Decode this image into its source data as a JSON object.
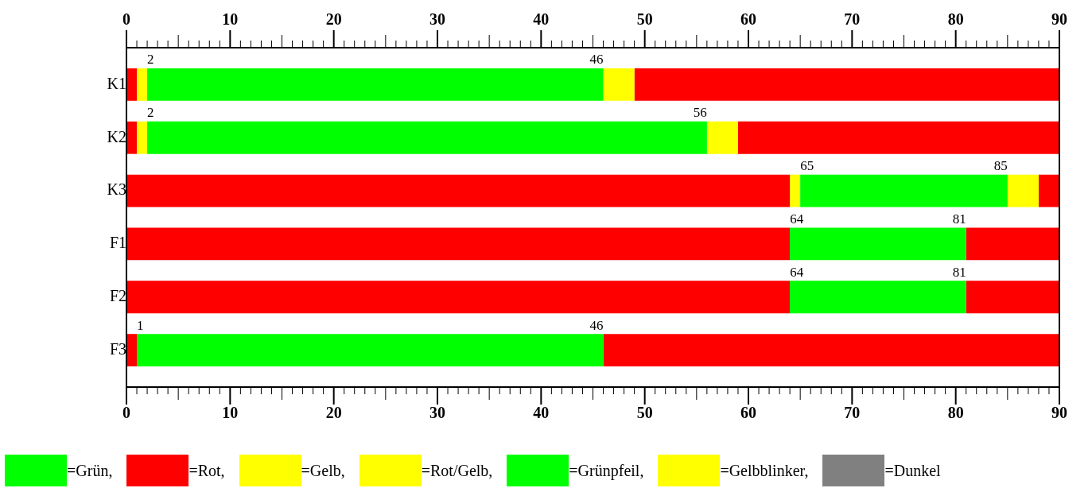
{
  "chart_data": {
    "type": "bar",
    "orientation": "horizontal",
    "categories": [
      "K1",
      "K2",
      "K3",
      "F1",
      "F2",
      "F3"
    ],
    "series": [
      {
        "name": "=Grün,",
        "color": "#00ff00",
        "base": [
          2,
          2,
          65,
          64,
          64,
          1
        ],
        "values": [
          44,
          54,
          20,
          17,
          17,
          45
        ]
      },
      {
        "name": "=Rot,",
        "color": "#ff0000",
        "base": [
          0,
          0,
          0,
          0,
          0,
          0
        ],
        "values": [
          1,
          1,
          64,
          64,
          64,
          1
        ]
      },
      {
        "name": "=Gelb,",
        "color": "#ffff00",
        "base": [
          46,
          56,
          85,
          null,
          null,
          null
        ],
        "values": [
          3,
          3,
          3,
          null,
          null,
          null
        ]
      },
      {
        "name": "=Rot/Gelb,",
        "color": "#ffff00",
        "base": [
          1,
          1,
          64,
          null,
          null,
          null
        ],
        "values": [
          1,
          1,
          1,
          null,
          null,
          null
        ]
      },
      {
        "name": "=Grünpfeil,",
        "color": "#00ff00",
        "values": [
          null,
          null,
          null,
          null,
          null,
          null
        ]
      },
      {
        "name": "=Gelbblinker,",
        "color": "#ffff00",
        "values": [
          null,
          null,
          null,
          null,
          null,
          null
        ]
      },
      {
        "name": "=Dunkel",
        "color": "#808080",
        "values": [
          null,
          null,
          null,
          null,
          null,
          null
        ]
      },
      {
        "color": "#ff0000",
        "base": [
          49,
          59,
          88,
          81,
          81,
          46
        ],
        "values": [
          41,
          31,
          2,
          9,
          9,
          44
        ]
      }
    ],
    "xlim": [
      0,
      90
    ],
    "x2lim": [
      0,
      90
    ],
    "xticks": [
      0,
      {
        "value": 1,
        "label": null
      },
      {
        "value": 2,
        "label": null
      },
      {
        "value": 3,
        "label": null
      },
      {
        "value": 4,
        "label": null
      },
      {
        "value": 5,
        "label": null
      },
      {
        "value": 6,
        "label": null
      },
      {
        "value": 7,
        "label": null
      },
      {
        "value": 8,
        "label": null
      },
      {
        "value": 9,
        "label": null
      },
      10,
      {
        "value": 11,
        "label": null
      },
      {
        "value": 12,
        "label": null
      },
      {
        "value": 13,
        "label": null
      },
      {
        "value": 14,
        "label": null
      },
      {
        "value": 15,
        "label": null
      },
      {
        "value": 16,
        "label": null
      },
      {
        "value": 17,
        "label": null
      },
      {
        "value": 18,
        "label": null
      },
      {
        "value": 19,
        "label": null
      },
      20,
      {
        "value": 21,
        "label": null
      },
      {
        "value": 22,
        "label": null
      },
      {
        "value": 23,
        "label": null
      },
      {
        "value": 24,
        "label": null
      },
      {
        "value": 25,
        "label": null
      },
      {
        "value": 26,
        "label": null
      },
      {
        "value": 27,
        "label": null
      },
      {
        "value": 28,
        "label": null
      },
      {
        "value": 29,
        "label": null
      },
      30,
      {
        "value": 31,
        "label": null
      },
      {
        "value": 32,
        "label": null
      },
      {
        "value": 33,
        "label": null
      },
      {
        "value": 34,
        "label": null
      },
      {
        "value": 35,
        "label": null
      },
      {
        "value": 36,
        "label": null
      },
      {
        "value": 37,
        "label": null
      },
      {
        "value": 38,
        "label": null
      },
      {
        "value": 39,
        "label": null
      },
      40,
      {
        "value": 41,
        "label": null
      },
      {
        "value": 42,
        "label": null
      },
      {
        "value": 43,
        "label": null
      },
      {
        "value": 44,
        "label": null
      },
      {
        "value": 45,
        "label": null
      },
      {
        "value": 46,
        "label": null
      },
      {
        "value": 47,
        "label": null
      },
      {
        "value": 48,
        "label": null
      },
      {
        "value": 49,
        "label": null
      },
      50,
      {
        "value": 51,
        "label": null
      },
      {
        "value": 52,
        "label": null
      },
      {
        "value": 53,
        "label": null
      },
      {
        "value": 54,
        "label": null
      },
      {
        "value": 55,
        "label": null
      },
      {
        "value": 56,
        "label": null
      },
      {
        "value": 57,
        "label": null
      },
      {
        "value": 58,
        "label": null
      },
      {
        "value": 59,
        "label": null
      },
      60,
      {
        "value": 61,
        "label": null
      },
      {
        "value": 62,
        "label": null
      },
      {
        "value": 63,
        "label": null
      },
      {
        "value": 64,
        "label": null
      },
      {
        "value": 65,
        "label": null
      },
      {
        "value": 66,
        "label": null
      },
      {
        "value": 67,
        "label": null
      },
      {
        "value": 68,
        "label": null
      },
      {
        "value": 69,
        "label": null
      },
      70,
      {
        "value": 71,
        "label": null
      },
      {
        "value": 72,
        "label": null
      },
      {
        "value": 73,
        "label": null
      },
      {
        "value": 74,
        "label": null
      },
      {
        "value": 75,
        "label": null
      },
      {
        "value": 76,
        "label": null
      },
      {
        "value": 77,
        "label": null
      },
      {
        "value": 78,
        "label": null
      },
      {
        "value": 79,
        "label": null
      },
      80,
      {
        "value": 81,
        "label": null
      },
      {
        "value": 82,
        "label": null
      },
      {
        "value": 83,
        "label": null
      },
      {
        "value": 84,
        "label": null
      },
      {
        "value": 85,
        "label": null
      },
      {
        "value": 86,
        "label": null
      },
      {
        "value": 87,
        "label": null
      },
      {
        "value": 88,
        "label": null
      },
      {
        "value": 89,
        "label": null
      },
      90
    ],
    "x2ticks": [
      0,
      {
        "value": 1,
        "label": null
      },
      {
        "value": 2,
        "label": null
      },
      {
        "value": 3,
        "label": null
      },
      {
        "value": 4,
        "label": null
      },
      {
        "value": 5,
        "label": null
      },
      {
        "value": 6,
        "label": null
      },
      {
        "value": 7,
        "label": null
      },
      {
        "value": 8,
        "label": null
      },
      {
        "value": 9,
        "label": null
      },
      10,
      {
        "value": 11,
        "label": null
      },
      {
        "value": 12,
        "label": null
      },
      {
        "value": 13,
        "label": null
      },
      {
        "value": 14,
        "label": null
      },
      {
        "value": 15,
        "label": null
      },
      {
        "value": 16,
        "label": null
      },
      {
        "value": 17,
        "label": null
      },
      {
        "value": 18,
        "label": null
      },
      {
        "value": 19,
        "label": null
      },
      20,
      {
        "value": 21,
        "label": null
      },
      {
        "value": 22,
        "label": null
      },
      {
        "value": 23,
        "label": null
      },
      {
        "value": 24,
        "label": null
      },
      {
        "value": 25,
        "label": null
      },
      {
        "value": 26,
        "label": null
      },
      {
        "value": 27,
        "label": null
      },
      {
        "value": 28,
        "label": null
      },
      {
        "value": 29,
        "label": null
      },
      30,
      {
        "value": 31,
        "label": null
      },
      {
        "value": 32,
        "label": null
      },
      {
        "value": 33,
        "label": null
      },
      {
        "value": 34,
        "label": null
      },
      {
        "value": 35,
        "label": null
      },
      {
        "value": 36,
        "label": null
      },
      {
        "value": 37,
        "label": null
      },
      {
        "value": 38,
        "label": null
      },
      {
        "value": 39,
        "label": null
      },
      40,
      {
        "value": 41,
        "label": null
      },
      {
        "value": 42,
        "label": null
      },
      {
        "value": 43,
        "label": null
      },
      {
        "value": 44,
        "label": null
      },
      {
        "value": 45,
        "label": null
      },
      {
        "value": 46,
        "label": null
      },
      {
        "value": 47,
        "label": null
      },
      {
        "value": 48,
        "label": null
      },
      {
        "value": 49,
        "label": null
      },
      50,
      {
        "value": 51,
        "label": null
      },
      {
        "value": 52,
        "label": null
      },
      {
        "value": 53,
        "label": null
      },
      {
        "value": 54,
        "label": null
      },
      {
        "value": 55,
        "label": null
      },
      {
        "value": 56,
        "label": null
      },
      {
        "value": 57,
        "label": null
      },
      {
        "value": 58,
        "label": null
      },
      {
        "value": 59,
        "label": null
      },
      60,
      {
        "value": 61,
        "label": null
      },
      {
        "value": 62,
        "label": null
      },
      {
        "value": 63,
        "label": null
      },
      {
        "value": 64,
        "label": null
      },
      {
        "value": 65,
        "label": null
      },
      {
        "value": 66,
        "label": null
      },
      {
        "value": 67,
        "label": null
      },
      {
        "value": 68,
        "label": null
      },
      {
        "value": 69,
        "label": null
      },
      70,
      {
        "value": 71,
        "label": null
      },
      {
        "value": 72,
        "label": null
      },
      {
        "value": 73,
        "label": null
      },
      {
        "value": 74,
        "label": null
      },
      {
        "value": 75,
        "label": null
      },
      {
        "value": 76,
        "label": null
      },
      {
        "value": 77,
        "label": null
      },
      {
        "value": 78,
        "label": null
      },
      {
        "value": 79,
        "label": null
      },
      80,
      {
        "value": 81,
        "label": null
      },
      {
        "value": 82,
        "label": null
      },
      {
        "value": 83,
        "label": null
      },
      {
        "value": 84,
        "label": null
      },
      {
        "value": 85,
        "label": null
      },
      {
        "value": 86,
        "label": null
      },
      {
        "value": 87,
        "label": null
      },
      {
        "value": 88,
        "label": null
      },
      {
        "value": 89,
        "label": null
      },
      90
    ],
    "annotations": [
      {
        "text": "2",
        "x": 2,
        "y": "K1"
      },
      {
        "text": "46",
        "x": 46,
        "y": "K1"
      },
      {
        "text": "2",
        "x": 2,
        "y": "K2"
      },
      {
        "text": "56",
        "x": 56,
        "y": "K2"
      },
      {
        "text": "65",
        "x": 65,
        "y": "K3"
      },
      {
        "text": "85",
        "x": 85,
        "y": "K3"
      },
      {
        "text": "64",
        "x": 64,
        "y": "F1"
      },
      {
        "text": "81",
        "x": 81,
        "y": "F1"
      },
      {
        "text": "64",
        "x": 64,
        "y": "F2"
      },
      {
        "text": "81",
        "x": 81,
        "y": "F2"
      },
      {
        "text": "1",
        "x": 1,
        "y": "F3"
      },
      {
        "text": "46",
        "x": 46,
        "y": "F3"
      }
    ],
    "grid": false,
    "legend": "bottom"
  }
}
